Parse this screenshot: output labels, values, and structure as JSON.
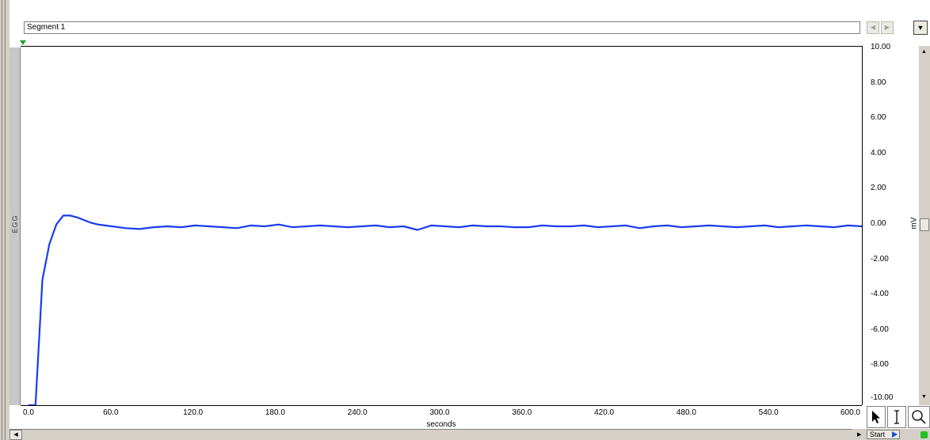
{
  "segment": {
    "label": "Segment 1"
  },
  "channel": {
    "label": "EGG"
  },
  "y_axis": {
    "unit": "mV",
    "ticks": [
      "10.00",
      "8.00",
      "6.00",
      "4.00",
      "2.00",
      "0.00",
      "-2.00",
      "-4.00",
      "-6.00",
      "-8.00",
      "-10.00"
    ]
  },
  "x_axis": {
    "label": "seconds",
    "ticks": [
      "0.0",
      "60.0",
      "120.0",
      "180.0",
      "240.0",
      "300.0",
      "360.0",
      "420.0",
      "480.0",
      "540.0",
      "600.0"
    ]
  },
  "controls": {
    "start_label": "Start",
    "status_color": "#20c020",
    "trace_color": "#1a3cf0"
  },
  "icons": [
    "arrow-pointer-icon",
    "ibeam-cursor-icon",
    "zoom-icon",
    "chevron-left-icon",
    "chevron-right-icon",
    "dropdown-arrow-icon",
    "play-icon"
  ],
  "chart_data": {
    "type": "line",
    "xlabel": "seconds",
    "ylabel": "mV",
    "ylim": [
      -10,
      10
    ],
    "xlim": [
      0,
      600
    ],
    "grid": false,
    "series": [
      {
        "channel": "EGG",
        "x": [
          0,
          5,
          10,
          15,
          20,
          25,
          30,
          35,
          40,
          45,
          50,
          60,
          70,
          80,
          90,
          100,
          110,
          120,
          130,
          140,
          150,
          160,
          170,
          180,
          190,
          200,
          210,
          220,
          230,
          240,
          250,
          260,
          270,
          280,
          290,
          300,
          310,
          320,
          330,
          340,
          350,
          360,
          370,
          380,
          390,
          400,
          410,
          420,
          430,
          440,
          450,
          460,
          470,
          480,
          490,
          500,
          510,
          520,
          530,
          540,
          550,
          560,
          570,
          580,
          590,
          600
        ],
        "y": [
          -10,
          -10,
          -3.0,
          -1.0,
          0.1,
          0.6,
          0.6,
          0.5,
          0.35,
          0.2,
          0.1,
          0.0,
          -0.1,
          -0.15,
          -0.05,
          0.0,
          -0.05,
          0.05,
          0.0,
          -0.05,
          -0.1,
          0.05,
          0.0,
          0.1,
          -0.05,
          0.0,
          0.05,
          0.0,
          -0.05,
          0.0,
          0.05,
          -0.05,
          0.0,
          -0.2,
          0.05,
          0.0,
          -0.05,
          0.05,
          0.0,
          0.0,
          -0.05,
          -0.05,
          0.05,
          0.0,
          0.0,
          0.05,
          -0.05,
          0.0,
          0.05,
          -0.1,
          0.0,
          0.05,
          -0.05,
          0.0,
          0.05,
          0.0,
          -0.05,
          0.0,
          0.05,
          -0.05,
          0.0,
          0.05,
          0.0,
          -0.05,
          0.05,
          0.0
        ]
      }
    ]
  }
}
